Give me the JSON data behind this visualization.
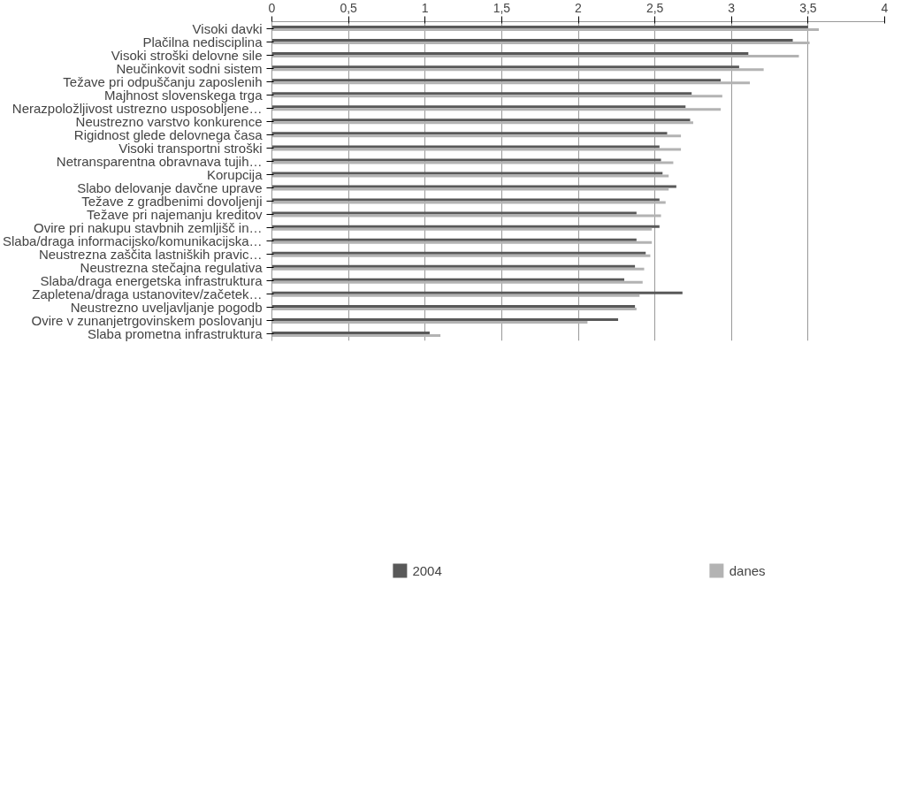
{
  "chart_data": {
    "type": "bar",
    "orientation": "horizontal",
    "categories": [
      "Visoki davki",
      "Plačilna nedisciplina",
      "Visoki stroški delovne sile",
      "Neučinkovit sodni sistem",
      "Težave pri odpuščanju zaposlenih",
      "Majhnost slovenskega trga",
      "Nerazpoložljivost ustrezno usposobljene…",
      "Neustrezno varstvo konkurence",
      "Rigidnost glede delovnega časa",
      "Visoki transportni stroški",
      "Netransparentna obravnava tujih…",
      "Korupcija",
      "Slabo delovanje davčne uprave",
      "Težave z gradbenimi dovoljenji",
      "Težave pri najemanju kreditov",
      "Ovire pri nakupu stavbnih zemljišč in…",
      "Slaba/draga informacijsko/komunikacijska…",
      "Neustrezna zaščita lastniških pravic…",
      "Neustrezna stečajna regulativa",
      "Slaba/draga energetska infrastruktura",
      "Zapletena/draga ustanovitev/začetek…",
      "Neustrezno uveljavljanje pogodb",
      "Ovire v zunanjetrgovinskem poslovanju",
      "Slaba prometna infrastruktura"
    ],
    "series": [
      {
        "name": "2004",
        "color": "#595959",
        "values": [
          3.5,
          3.4,
          3.11,
          3.05,
          2.93,
          2.74,
          2.7,
          2.73,
          2.58,
          2.53,
          2.54,
          2.55,
          2.64,
          2.53,
          2.38,
          2.53,
          2.38,
          2.44,
          2.37,
          2.3,
          2.68,
          2.37,
          2.26,
          1.03
        ]
      },
      {
        "name": "danes",
        "color": "#b3b3b3",
        "values": [
          3.57,
          3.51,
          3.44,
          3.21,
          3.12,
          2.94,
          2.93,
          2.75,
          2.67,
          2.67,
          2.62,
          2.59,
          2.59,
          2.57,
          2.54,
          2.48,
          2.48,
          2.47,
          2.43,
          2.42,
          2.4,
          2.38,
          2.06,
          1.1
        ]
      }
    ],
    "xlim": [
      0,
      4
    ],
    "xticks": [
      0,
      {
        "value": 0.5,
        "label": "0,5"
      },
      1,
      {
        "value": 1.5,
        "label": "1,5"
      },
      2,
      {
        "value": 2.5,
        "label": "2,5"
      },
      3,
      {
        "value": 3.5,
        "label": "3,5"
      },
      4
    ],
    "grid": "x",
    "legend": "bottom"
  }
}
